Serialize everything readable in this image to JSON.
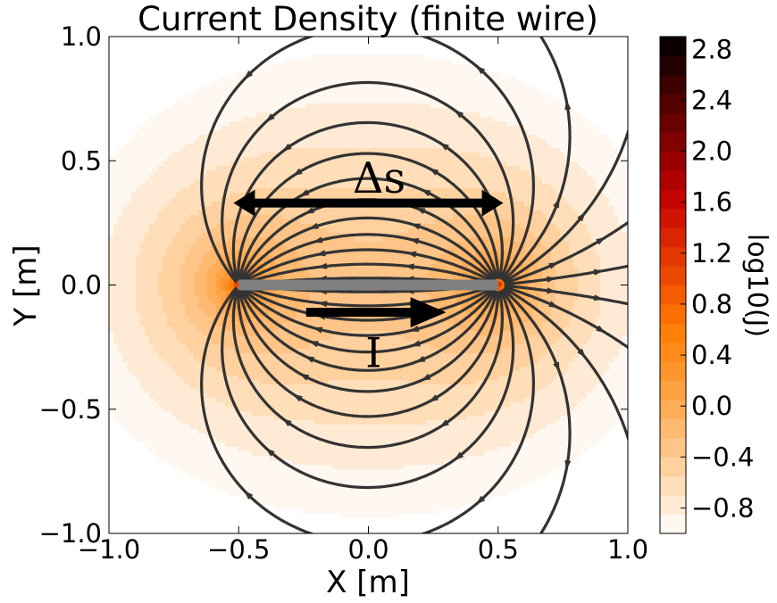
{
  "chart_data": {
    "type": "heatmap",
    "title": "Current Density (finite wire)",
    "xlabel": "X [m]",
    "ylabel": "Y [m]",
    "xlim": [
      -1.0,
      1.0
    ],
    "ylim": [
      -1.0,
      1.0
    ],
    "xticks": [
      "−1.0",
      "−0.5",
      "0.0",
      "0.5",
      "1.0"
    ],
    "yticks": [
      "−1.0",
      "−0.5",
      "0.0",
      "0.5",
      "1.0"
    ],
    "xtick_values": [
      -1.0,
      -0.5,
      0.0,
      0.5,
      1.0
    ],
    "ytick_values": [
      -1.0,
      -0.5,
      0.0,
      0.5,
      1.0
    ],
    "colorbar": {
      "label": "log10(J)",
      "range": [
        -1.0,
        2.9
      ],
      "ticks": [
        "−0.8",
        "−0.4",
        "0.0",
        "0.4",
        "0.8",
        "1.2",
        "1.6",
        "2.0",
        "2.4",
        "2.8"
      ],
      "tick_values": [
        -0.8,
        -0.4,
        0.0,
        0.4,
        0.8,
        1.2,
        1.6,
        2.0,
        2.4,
        2.8
      ],
      "colormap": "gist_heat_r"
    },
    "wire": {
      "x": [
        -0.5,
        0.5
      ],
      "y": 0.0,
      "color": "#808080"
    },
    "annotations": {
      "delta_s": {
        "text": "Δs",
        "x_range": [
          -0.52,
          0.52
        ],
        "y": 0.33,
        "text_y": 0.45
      },
      "current": {
        "text": "I",
        "x_range": [
          -0.24,
          0.3
        ],
        "y": -0.11,
        "text_y": -0.27
      }
    },
    "field": "dipole streamlines from (0.5, 0) to (-0.5, 0)"
  }
}
